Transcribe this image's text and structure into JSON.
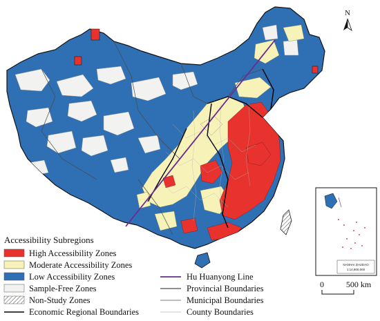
{
  "colors": {
    "high": "#e8322e",
    "moderate": "#f7f2b8",
    "low": "#2f6fb3",
    "sample_free": "#f2f2f0",
    "hu_line": "#6a2c91",
    "economic_boundary": "#000000",
    "provincial_boundary": "#4a4a4a",
    "municipal_boundary": "#7a7a7a",
    "county_boundary": "#b5b5b5"
  },
  "north_arrow": {
    "label": "N",
    "icon": "north-arrow-icon"
  },
  "legend": {
    "title": "Accessibility Subregions",
    "items": [
      {
        "label": "High Accessibility Zones",
        "symbol": "fill",
        "color": "#e8322e"
      },
      {
        "label": "Moderate Accessibility Zones",
        "symbol": "fill",
        "color": "#f7f2b8"
      },
      {
        "label": "Low Accessibility Zones",
        "symbol": "fill",
        "color": "#2f6fb3"
      },
      {
        "label": "Sample-Free Zones",
        "symbol": "fill",
        "color": "#f2f2f0"
      },
      {
        "label": "Non-Study Zones",
        "symbol": "hatch",
        "color": "#ffffff"
      },
      {
        "label": "Economic Regional Boundaries",
        "symbol": "line",
        "color": "#000000"
      },
      {
        "label": "Hu Huanyong Line",
        "symbol": "line",
        "color": "#6a2c91"
      },
      {
        "label": "Provincial Boundaries",
        "symbol": "line",
        "color": "#4a4a4a"
      },
      {
        "label": "Municipal Boundaries",
        "symbol": "line",
        "color": "#7a7a7a"
      },
      {
        "label": "County Boundaries",
        "symbol": "line",
        "color": "#b5b5b5"
      }
    ]
  },
  "scale_bar": {
    "start_label": "0",
    "end_label": "500 km"
  },
  "inset": {
    "title_line1": "NANHAI  ZHUDAO",
    "title_line2": "1:14,800,000"
  }
}
